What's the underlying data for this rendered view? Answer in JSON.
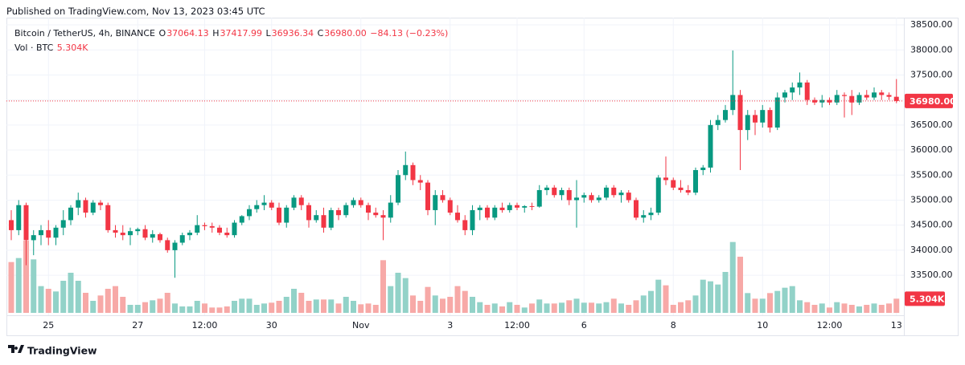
{
  "header": {
    "published": "Published on TradingView.com, Nov 13, 2023 03:45 UTC",
    "logo": "TradingView"
  },
  "chart_data": {
    "type": "candlestick",
    "legend": {
      "symbol": "Bitcoin / TetherUS, 4h, BINANCE",
      "o": "O",
      "open": "37064.13",
      "h": "H",
      "high": "37417.99",
      "l": "L",
      "low": "36936.34",
      "c": "C",
      "close": "36980.00",
      "change": "−84.13 (−0.23%)",
      "volume_title": "Vol · BTC",
      "volume": "5.304K"
    },
    "categories": [
      null,
      null,
      null,
      null,
      null,
      "25",
      null,
      null,
      null,
      null,
      null,
      null,
      null,
      null,
      null,
      null,
      null,
      "27",
      null,
      null,
      null,
      null,
      null,
      null,
      null,
      null,
      "12:00",
      null,
      null,
      null,
      null,
      null,
      null,
      null,
      null,
      "30",
      null,
      null,
      null,
      null,
      null,
      null,
      null,
      null,
      null,
      null,
      null,
      "Nov",
      null,
      null,
      null,
      null,
      null,
      null,
      null,
      null,
      null,
      null,
      null,
      "3",
      null,
      null,
      null,
      null,
      null,
      null,
      null,
      null,
      "12:00",
      null,
      null,
      null,
      null,
      null,
      null,
      null,
      null,
      "6",
      null,
      null,
      null,
      null,
      null,
      null,
      null,
      null,
      null,
      null,
      null,
      "8",
      null,
      null,
      null,
      null,
      null,
      null,
      null,
      null,
      null,
      null,
      null,
      "10",
      null,
      null,
      null,
      null,
      null,
      null,
      null,
      null,
      "12:00",
      null,
      null,
      null,
      null,
      null,
      null,
      null,
      null,
      "13"
    ],
    "open": [
      34600,
      34400,
      34900,
      34200,
      34300,
      34400,
      34250,
      34450,
      34600,
      34850,
      35000,
      34750,
      34950,
      34900,
      34400,
      34350,
      34300,
      34380,
      34420,
      34250,
      34320,
      34200,
      34000,
      34150,
      34300,
      34350,
      34500,
      34480,
      34450,
      34350,
      34300,
      34550,
      34680,
      34820,
      34900,
      34950,
      34850,
      34550,
      34850,
      35050,
      34900,
      34600,
      34700,
      34450,
      34800,
      34700,
      34900,
      35000,
      34900,
      34750,
      34700,
      34650,
      34950,
      35500,
      35700,
      35400,
      35350,
      34800,
      35100,
      35000,
      34750,
      34600,
      34400,
      34800,
      34850,
      34650,
      34850,
      34800,
      34900,
      34850,
      34880,
      34870,
      35200,
      35250,
      35100,
      35200,
      35000,
      35050,
      35100,
      35000,
      35050,
      35250,
      35100,
      35150,
      35000,
      34650,
      34700,
      34750,
      35450,
      35400,
      35250,
      35200,
      35150,
      35600,
      35650,
      36500,
      36600,
      36800,
      37100,
      36400,
      36700,
      36550,
      36800,
      36450,
      37050,
      37150,
      37250,
      37350,
      37000,
      36950,
      37000,
      36950,
      37100,
      37080,
      36950,
      37100,
      37050,
      37150,
      37100,
      37064.13
    ],
    "high": [
      34800,
      35000,
      34950,
      34400,
      34500,
      34600,
      34500,
      34800,
      34900,
      35150,
      35050,
      35000,
      35000,
      34950,
      34500,
      34500,
      34450,
      34450,
      34500,
      34400,
      34350,
      34250,
      34200,
      34350,
      34400,
      34700,
      34550,
      34550,
      34500,
      34450,
      34600,
      34700,
      34900,
      35000,
      35100,
      35000,
      34950,
      34900,
      35100,
      35100,
      34950,
      34800,
      34850,
      34850,
      34850,
      34950,
      35050,
      35050,
      34950,
      34850,
      34800,
      35100,
      35600,
      35970,
      35750,
      35500,
      35400,
      35200,
      35200,
      35050,
      34900,
      34700,
      34900,
      34900,
      34900,
      34900,
      34950,
      34950,
      34950,
      34900,
      34950,
      35300,
      35300,
      35300,
      35250,
      35250,
      35400,
      35150,
      35150,
      35100,
      35300,
      35300,
      35200,
      35200,
      35050,
      34800,
      34850,
      35500,
      35870,
      35450,
      35400,
      35300,
      35650,
      35700,
      36600,
      36700,
      36900,
      37990,
      37200,
      36800,
      36800,
      36900,
      36850,
      37150,
      37200,
      37350,
      37550,
      37400,
      37050,
      37100,
      37050,
      37200,
      37150,
      37200,
      37150,
      37200,
      37250,
      37200,
      37150,
      37417.99
    ],
    "low": [
      34200,
      34300,
      33700,
      33900,
      34100,
      34100,
      34100,
      34300,
      34500,
      34700,
      34650,
      34700,
      34800,
      34350,
      34250,
      34200,
      34100,
      34300,
      34200,
      34150,
      34150,
      33950,
      33450,
      34100,
      34200,
      34300,
      34400,
      34350,
      34300,
      34250,
      34250,
      34500,
      34600,
      34750,
      34800,
      34800,
      34500,
      34450,
      34800,
      34800,
      34450,
      34550,
      34350,
      34400,
      34600,
      34650,
      34850,
      34850,
      34600,
      34650,
      34200,
      34550,
      34900,
      35400,
      35300,
      35200,
      34700,
      34500,
      34950,
      34700,
      34550,
      34300,
      34300,
      34600,
      34600,
      34600,
      34750,
      34750,
      34800,
      34750,
      34800,
      34850,
      35100,
      35050,
      35000,
      34900,
      34450,
      34950,
      34950,
      34950,
      35000,
      35050,
      34950,
      34950,
      34600,
      34550,
      34600,
      34700,
      35300,
      35200,
      35150,
      35100,
      35100,
      35500,
      35550,
      36400,
      36550,
      36700,
      35600,
      36200,
      36300,
      36450,
      36350,
      36400,
      36950,
      37000,
      37100,
      36900,
      36900,
      36850,
      36900,
      36900,
      36650,
      36700,
      36900,
      37000,
      37000,
      37000,
      37000,
      36936.34
    ],
    "close": [
      34400,
      34900,
      34200,
      34300,
      34400,
      34250,
      34450,
      34600,
      34850,
      35000,
      34750,
      34950,
      34900,
      34400,
      34350,
      34300,
      34380,
      34420,
      34250,
      34320,
      34200,
      34000,
      34150,
      34300,
      34350,
      34500,
      34480,
      34450,
      34350,
      34300,
      34550,
      34680,
      34820,
      34900,
      34950,
      34850,
      34550,
      34850,
      35050,
      34900,
      34600,
      34700,
      34450,
      34800,
      34700,
      34900,
      35000,
      34900,
      34750,
      34700,
      34650,
      34950,
      35500,
      35700,
      35400,
      35350,
      34800,
      35100,
      35000,
      34750,
      34600,
      34400,
      34800,
      34850,
      34650,
      34850,
      34800,
      34900,
      34850,
      34880,
      34870,
      35200,
      35250,
      35100,
      35200,
      35000,
      35050,
      35100,
      35000,
      35050,
      35250,
      35100,
      35150,
      35000,
      34650,
      34700,
      34750,
      35450,
      35400,
      35250,
      35200,
      35150,
      35600,
      35650,
      36500,
      36600,
      36800,
      37100,
      36400,
      36700,
      36550,
      36800,
      36450,
      37050,
      37150,
      37250,
      37350,
      37000,
      36950,
      37000,
      36950,
      37100,
      37080,
      36950,
      37100,
      37050,
      37150,
      37100,
      37064.13,
      36980
    ],
    "volume": [
      19000,
      20500,
      27000,
      20000,
      10000,
      9000,
      8000,
      12000,
      15000,
      12000,
      7500,
      4500,
      6500,
      9000,
      10000,
      6000,
      3000,
      3000,
      4000,
      4700,
      5300,
      7500,
      3500,
      2400,
      2400,
      4500,
      3500,
      2000,
      2000,
      2400,
      4500,
      5300,
      5300,
      3000,
      3500,
      3800,
      4500,
      6000,
      9000,
      7500,
      4500,
      5000,
      5000,
      5000,
      3500,
      6000,
      4500,
      3200,
      3500,
      3000,
      19700,
      10000,
      15000,
      13000,
      6500,
      4500,
      9700,
      6500,
      5300,
      6000,
      10000,
      8200,
      6000,
      4000,
      3000,
      3500,
      2400,
      4000,
      3000,
      2000,
      3500,
      5000,
      3500,
      3500,
      3800,
      4700,
      5300,
      3800,
      3800,
      3500,
      4000,
      5300,
      3500,
      3000,
      4700,
      6500,
      8200,
      12400,
      10300,
      3000,
      4000,
      4700,
      6500,
      12400,
      11800,
      10600,
      15300,
      26500,
      21000,
      7400,
      5300,
      5300,
      7400,
      8200,
      9400,
      10000,
      4700,
      4000,
      3000,
      3500,
      2000,
      4000,
      3500,
      3000,
      2400,
      3000,
      3500,
      3000,
      3500,
      5304
    ],
    "ylim": [
      32700,
      38645
    ],
    "yticks": [
      {
        "value": 33500,
        "label": "33500.00"
      },
      {
        "value": 34000,
        "label": "34000.00"
      },
      {
        "value": 34500,
        "label": "34500.00"
      },
      {
        "value": 35000,
        "label": "35000.00"
      },
      {
        "value": 35500,
        "label": "35500.00"
      },
      {
        "value": 36000,
        "label": "36000.00"
      },
      {
        "value": 36500,
        "label": "36500.00"
      },
      {
        "value": 37000,
        "label": "37000.00"
      },
      {
        "value": 37500,
        "label": "37500.00"
      },
      {
        "value": 38000,
        "label": "38000.00"
      },
      {
        "value": 38500,
        "label": "38500.00"
      }
    ],
    "grid": true,
    "up_color": "#089981",
    "down_color": "#f23645",
    "volume_up_color": "#92d2c8",
    "volume_down_color": "#f7a9a7"
  }
}
